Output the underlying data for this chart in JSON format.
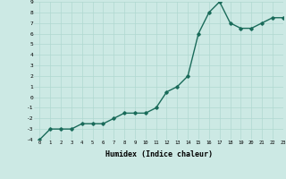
{
  "x": [
    0,
    1,
    2,
    3,
    4,
    5,
    6,
    7,
    8,
    9,
    10,
    11,
    12,
    13,
    14,
    15,
    16,
    17,
    18,
    19,
    20,
    21,
    22,
    23
  ],
  "y": [
    -4,
    -3,
    -3,
    -3,
    -2.5,
    -2.5,
    -2.5,
    -2,
    -1.5,
    -1.5,
    -1.5,
    -1,
    0.5,
    1,
    2,
    6,
    8,
    9,
    7,
    6.5,
    6.5,
    7,
    7.5,
    7.5
  ],
  "xlabel": "Humidex (Indice chaleur)",
  "ylim": [
    -4,
    9
  ],
  "xlim": [
    -0.5,
    23
  ],
  "yticks": [
    -4,
    -3,
    -2,
    -1,
    0,
    1,
    2,
    3,
    4,
    5,
    6,
    7,
    8,
    9
  ],
  "xticks": [
    0,
    1,
    2,
    3,
    4,
    5,
    6,
    7,
    8,
    9,
    10,
    11,
    12,
    13,
    14,
    15,
    16,
    17,
    18,
    19,
    20,
    21,
    22,
    23
  ],
  "line_color": "#1a6b5a",
  "bg_color": "#cce9e4",
  "grid_color": "#b0d8d0",
  "marker": "D",
  "marker_size": 1.8,
  "linewidth": 1.0
}
